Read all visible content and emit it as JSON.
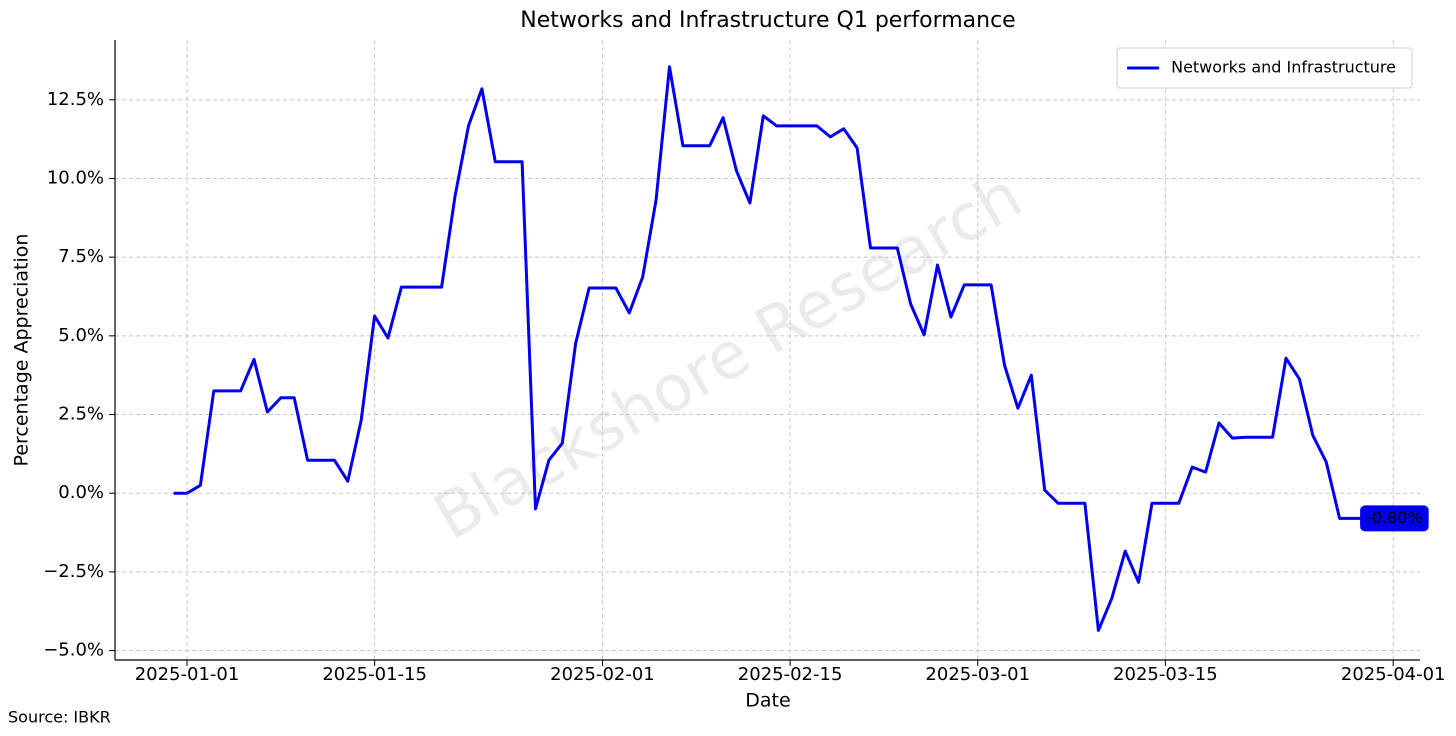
{
  "chart_data": {
    "type": "line",
    "title": "Networks and Infrastructure Q1 performance",
    "x_label": "Date",
    "y_label": "Percentage Appreciation",
    "source": "Source: IBKR",
    "watermark": "Blackshore Research",
    "legend": "upper right",
    "grid": true,
    "x": [
      "2024-12-31",
      "2025-01-01",
      "2025-01-02",
      "2025-01-03",
      "2025-01-04",
      "2025-01-05",
      "2025-01-06",
      "2025-01-07",
      "2025-01-08",
      "2025-01-09",
      "2025-01-10",
      "2025-01-11",
      "2025-01-12",
      "2025-01-13",
      "2025-01-14",
      "2025-01-15",
      "2025-01-16",
      "2025-01-17",
      "2025-01-18",
      "2025-01-19",
      "2025-01-20",
      "2025-01-21",
      "2025-01-22",
      "2025-01-23",
      "2025-01-24",
      "2025-01-25",
      "2025-01-26",
      "2025-01-27",
      "2025-01-28",
      "2025-01-29",
      "2025-01-30",
      "2025-01-31",
      "2025-02-01",
      "2025-02-02",
      "2025-02-03",
      "2025-02-04",
      "2025-02-05",
      "2025-02-06",
      "2025-02-07",
      "2025-02-08",
      "2025-02-09",
      "2025-02-10",
      "2025-02-11",
      "2025-02-12",
      "2025-02-13",
      "2025-02-14",
      "2025-02-15",
      "2025-02-16",
      "2025-02-17",
      "2025-02-18",
      "2025-02-19",
      "2025-02-20",
      "2025-02-21",
      "2025-02-22",
      "2025-02-23",
      "2025-02-24",
      "2025-02-25",
      "2025-02-26",
      "2025-02-27",
      "2025-02-28",
      "2025-03-01",
      "2025-03-02",
      "2025-03-03",
      "2025-03-04",
      "2025-03-05",
      "2025-03-06",
      "2025-03-07",
      "2025-03-08",
      "2025-03-09",
      "2025-03-10",
      "2025-03-11",
      "2025-03-12",
      "2025-03-13",
      "2025-03-14",
      "2025-03-15",
      "2025-03-16",
      "2025-03-17",
      "2025-03-18",
      "2025-03-19",
      "2025-03-20",
      "2025-03-21",
      "2025-03-22",
      "2025-03-23",
      "2025-03-24",
      "2025-03-25",
      "2025-03-26",
      "2025-03-27",
      "2025-03-28",
      "2025-03-29",
      "2025-03-30"
    ],
    "series": [
      {
        "name": "Networks and Infrastructure",
        "color": "#0000ee",
        "values": [
          0,
          0,
          0.25,
          3.25,
          3.25,
          3.25,
          4.25,
          2.58,
          3.03,
          3.03,
          1.05,
          1.05,
          1.05,
          0.38,
          2.32,
          5.63,
          4.93,
          6.55,
          6.55,
          6.55,
          6.55,
          9.45,
          11.67,
          12.85,
          10.53,
          10.53,
          10.53,
          -0.5,
          1.05,
          1.59,
          4.77,
          6.52,
          6.52,
          6.52,
          5.73,
          6.87,
          9.32,
          13.55,
          11.04,
          11.04,
          11.04,
          11.93,
          10.24,
          9.22,
          11.99,
          11.67,
          11.67,
          11.67,
          11.67,
          11.32,
          11.58,
          10.97,
          7.79,
          7.79,
          7.79,
          6.01,
          5.03,
          7.25,
          5.6,
          6.62,
          6.62,
          6.62,
          4.07,
          2.7,
          3.75,
          0.1,
          -0.32,
          -0.32,
          -0.32,
          -4.36,
          -3.34,
          -1.84,
          -2.83,
          -0.32,
          -0.32,
          -0.32,
          0.83,
          0.67,
          2.23,
          1.75,
          1.78,
          1.78,
          1.78,
          4.29,
          3.63,
          1.84,
          0.99,
          -0.8,
          -0.8,
          -0.8
        ]
      }
    ],
    "annotation": {
      "x": "2025-03-30",
      "y": -0.8,
      "label": "-0.80%",
      "color": "#0000ee"
    },
    "xlim": [
      "2024-12-27",
      "2025-04-03"
    ],
    "xticks": [
      "2025-01-01",
      "2025-01-15",
      "2025-02-01",
      "2025-02-15",
      "2025-03-01",
      "2025-03-15",
      "2025-04-01"
    ],
    "ylim": [
      -5.3,
      14.4
    ],
    "yticks": [
      {
        "value": -5,
        "label": "−5.0%"
      },
      {
        "value": -2.5,
        "label": "−2.5%"
      },
      {
        "value": 0,
        "label": "0.0%"
      },
      {
        "value": 2.5,
        "label": "2.5%"
      },
      {
        "value": 5,
        "label": "5.0%"
      },
      {
        "value": 7.5,
        "label": "7.5%"
      },
      {
        "value": 10,
        "label": "10.0%"
      },
      {
        "value": 12.5,
        "label": "12.5%"
      }
    ]
  }
}
